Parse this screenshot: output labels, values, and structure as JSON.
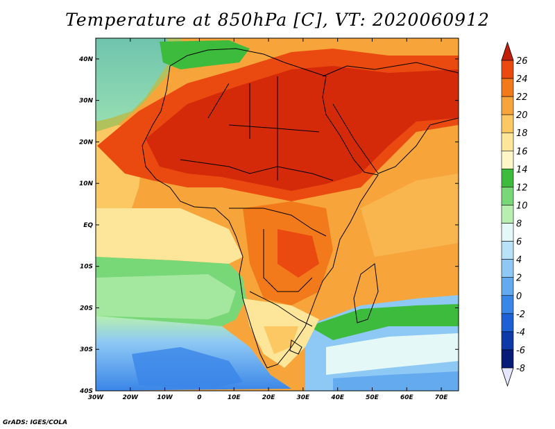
{
  "title": "Temperature at 850hPa [C], VT: 2020060912",
  "credit": "GrADS: IGES/COLA",
  "map": {
    "region": "Africa",
    "lon_range": [
      -30,
      75
    ],
    "lat_range": [
      -40,
      45
    ],
    "lon_ticks": [
      "30W",
      "20W",
      "10W",
      "0",
      "10E",
      "20E",
      "30E",
      "40E",
      "50E",
      "60E",
      "70E"
    ],
    "lat_ticks": [
      "40S",
      "30S",
      "20S",
      "10S",
      "EQ",
      "10N",
      "20N",
      "30N",
      "40N"
    ],
    "lon_tick_values": [
      -30,
      -20,
      -10,
      0,
      10,
      20,
      30,
      40,
      50,
      60,
      70
    ],
    "lat_tick_values": [
      -40,
      -30,
      -20,
      -10,
      0,
      10,
      20,
      30,
      40
    ]
  },
  "colorbar": {
    "levels": [
      "26",
      "24",
      "22",
      "20",
      "18",
      "16",
      "14",
      "12",
      "10",
      "8",
      "6",
      "4",
      "2",
      "0",
      "-2",
      "-4",
      "-6",
      "-8"
    ],
    "colors": [
      "#d42a0a",
      "#ea4a10",
      "#f27a1a",
      "#f7a53a",
      "#fbc863",
      "#fde699",
      "#fdf7c8",
      "#3cbb3c",
      "#78d878",
      "#b6efb0",
      "#e4f8f8",
      "#b8e2f8",
      "#8ec8f4",
      "#64aaef",
      "#3a86e8",
      "#1d5fd4",
      "#0d3aa8",
      "#061a78"
    ],
    "top_arrow_color": "#c0200a",
    "bottom_arrow_color": "#e6e6ff"
  }
}
